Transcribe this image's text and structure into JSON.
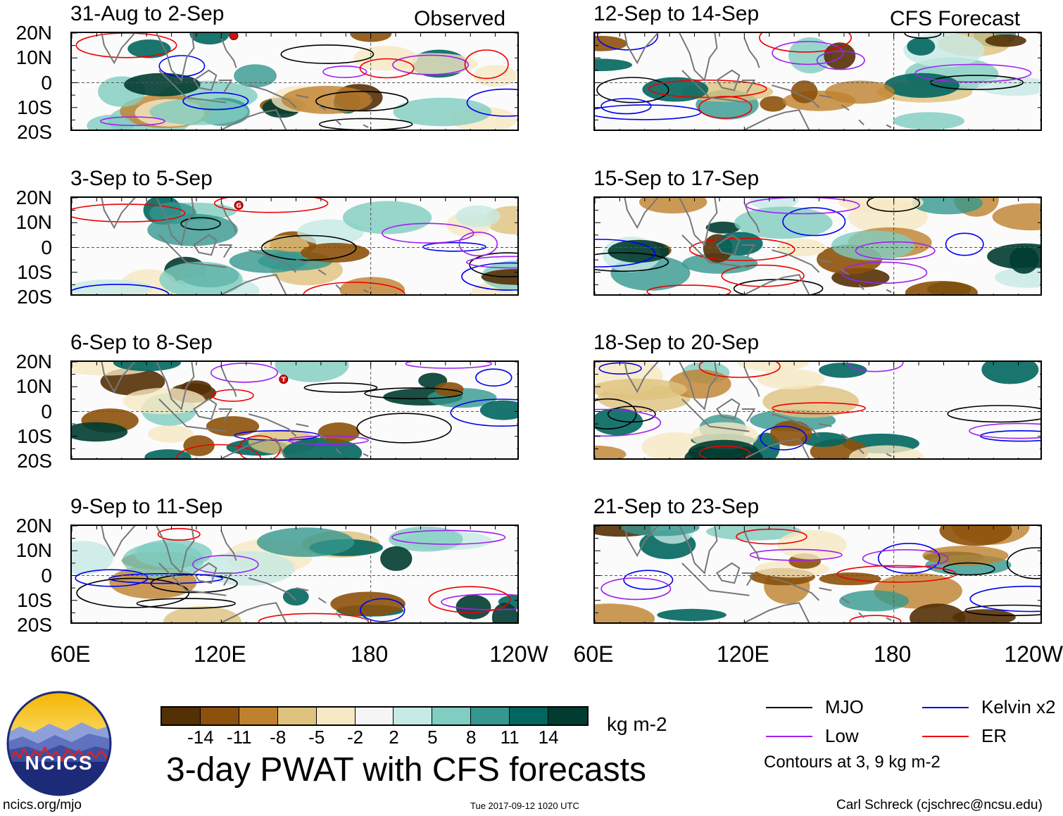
{
  "chart_data": {
    "type": "heatmap",
    "title": "3-day PWAT with CFS forecasts",
    "units": "kg m-2",
    "columns": [
      {
        "label": "Observed",
        "panels": [
          "31-Aug to 2-Sep",
          "3-Sep to 5-Sep",
          "6-Sep to 8-Sep",
          "9-Sep to 11-Sep"
        ]
      },
      {
        "label": "CFS Forecast",
        "panels": [
          "12-Sep to 14-Sep",
          "15-Sep to 17-Sep",
          "18-Sep to 20-Sep",
          "21-Sep to 23-Sep"
        ]
      }
    ],
    "y_ticks": [
      "20N",
      "10N",
      "0",
      "10S",
      "20S"
    ],
    "x_ticks": [
      "60E",
      "120E",
      "180",
      "120W"
    ],
    "x_tick_values_deg_east": [
      60,
      120,
      180,
      240
    ],
    "lon_range_deg_east": [
      60,
      240
    ],
    "lat_range": [
      -20,
      20
    ],
    "colorbar": {
      "tick_labels": [
        "-14",
        "-11",
        "-8",
        "-5",
        "-2",
        "2",
        "5",
        "8",
        "11",
        "14"
      ],
      "colors": [
        "#543005",
        "#8c510a",
        "#bf812d",
        "#dfc27d",
        "#f6e8c3",
        "#f5f5f5",
        "#c7eae5",
        "#80cdc1",
        "#35978f",
        "#01665e",
        "#003c30"
      ]
    },
    "contour_legend": [
      {
        "name": "MJO",
        "color": "#000000"
      },
      {
        "name": "Kelvin x2",
        "color": "#0000ee"
      },
      {
        "name": "Low",
        "color": "#a020f0"
      },
      {
        "name": "ER",
        "color": "#ee0000"
      }
    ],
    "contour_note": "Contours at 3, 9 kg m-2",
    "storm_markers": [
      {
        "panel": 0,
        "label": "",
        "lon": 125,
        "lat": 19
      },
      {
        "panel": 1,
        "label": "G",
        "lon": 127,
        "lat": 17
      },
      {
        "panel": 2,
        "label": "T",
        "lon": 145,
        "lat": 13
      }
    ]
  },
  "footer": {
    "logo_text": "NCICS",
    "url": "ncics.org/mjo",
    "timestamp": "Tue 2017-09-12 1020 UTC",
    "credit": "Carl Schreck (cjschrec@ncsu.edu)"
  }
}
